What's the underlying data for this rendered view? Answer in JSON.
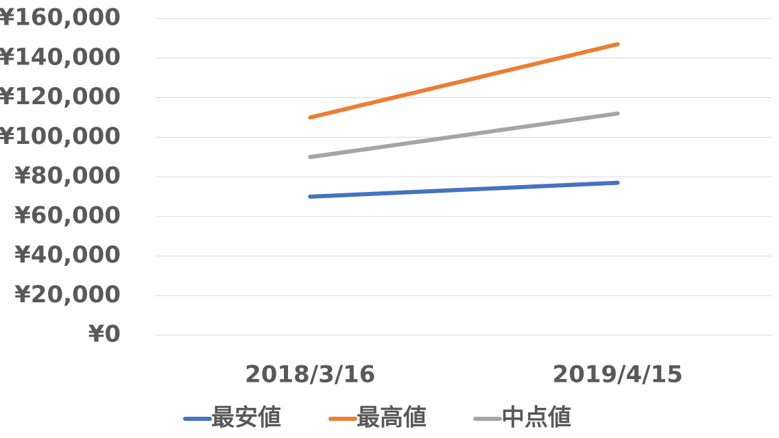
{
  "chart_data": {
    "type": "line",
    "categories": [
      "2018/3/16",
      "2019/4/15"
    ],
    "series": [
      {
        "name": "最安値",
        "color": "#4472c4",
        "values": [
          70000,
          77000
        ]
      },
      {
        "name": "最高値",
        "color": "#ed7d31",
        "values": [
          110000,
          147000
        ]
      },
      {
        "name": "中点値",
        "color": "#a5a5a5",
        "values": [
          90000,
          112000
        ]
      }
    ],
    "ylim": [
      0,
      160000
    ],
    "yticks": [
      {
        "value": 0,
        "label": "¥0"
      },
      {
        "value": 20000,
        "label": "¥20,000"
      },
      {
        "value": 40000,
        "label": "¥40,000"
      },
      {
        "value": 60000,
        "label": "¥60,000"
      },
      {
        "value": 80000,
        "label": "¥80,000"
      },
      {
        "value": 100000,
        "label": "¥100,000"
      },
      {
        "value": 120000,
        "label": "¥120,000"
      },
      {
        "value": 140000,
        "label": "¥140,000"
      },
      {
        "value": 160000,
        "label": "¥160,000"
      }
    ],
    "grid": true,
    "legend": "bottom"
  }
}
